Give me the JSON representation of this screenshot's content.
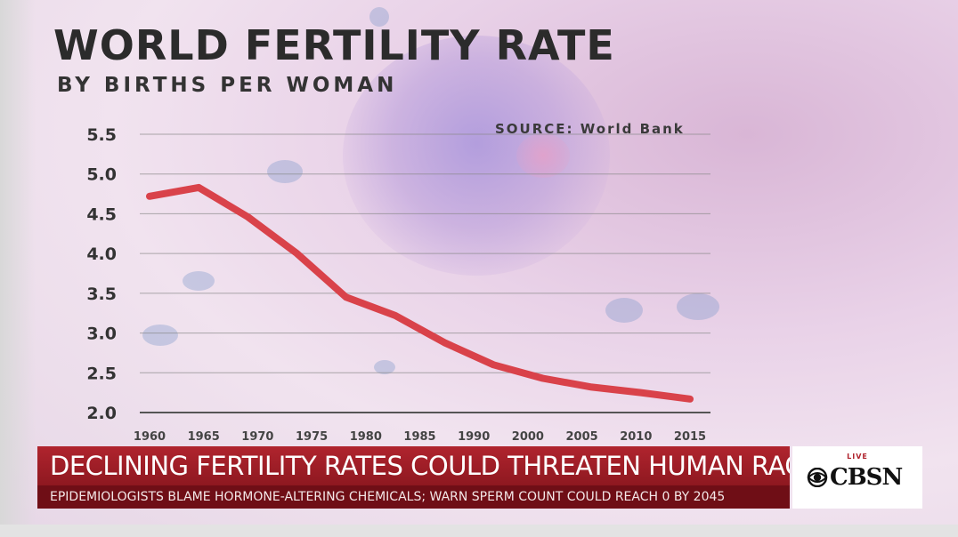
{
  "header": {
    "title": "WORLD FERTILITY RATE",
    "subtitle": "BY BIRTHS PER WOMAN",
    "source": "SOURCE: World Bank"
  },
  "chart_data": {
    "type": "line",
    "title": "WORLD FERTILITY RATE",
    "subtitle": "BY BIRTHS PER WOMAN",
    "source": "SOURCE: World Bank",
    "x": [
      1960,
      1965,
      1970,
      1975,
      1980,
      1985,
      1990,
      1995,
      2000,
      2005,
      2010,
      2015
    ],
    "y": [
      4.72,
      4.83,
      4.46,
      4.0,
      3.45,
      3.22,
      2.88,
      2.6,
      2.43,
      2.32,
      2.25,
      2.17
    ],
    "series_color": "#d9424a",
    "xticks": [
      "1960",
      "1965",
      "1970",
      "1975",
      "1980",
      "1985",
      "1990",
      "2000",
      "2005",
      "2010",
      "2015"
    ],
    "yticks": [
      "2.0",
      "2.5",
      "3.0",
      "3.5",
      "4.0",
      "4.5",
      "5.0",
      "5.5"
    ],
    "ylim": [
      2.0,
      5.5
    ],
    "grid": true,
    "legend": "none"
  },
  "ticker": {
    "headline": "DECLINING FERTILITY RATES COULD THREATEN HUMAN RACE",
    "subhead": "EPIDEMIOLOGISTS BLAME HORMONE-ALTERING CHEMICALS; WARN SPERM COUNT COULD REACH 0 BY 2045"
  },
  "brand": {
    "live": "LIVE",
    "name": "CBSN",
    "logo_icon": "cbs-eye-icon"
  },
  "colors": {
    "headline_bg": "#a01f28",
    "subhead_bg": "#6f0e16",
    "line": "#d9424a"
  }
}
